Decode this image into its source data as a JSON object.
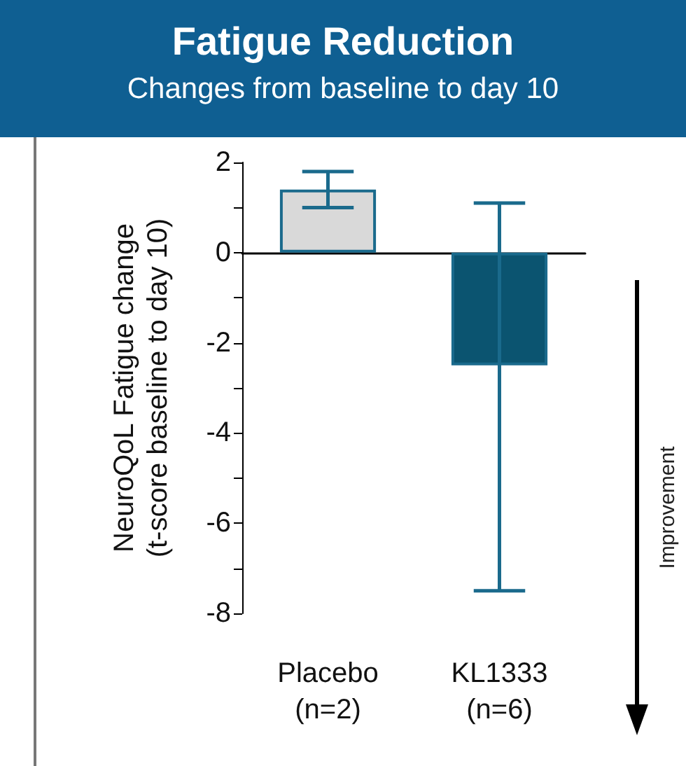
{
  "chart_data": {
    "type": "bar",
    "title": "Fatigue Reduction",
    "subtitle": "Changes from baseline to day 10",
    "ylabel": "NeuroQoL Fatigue change\n(t-score baseline to day 10)",
    "categories": [
      "Placebo\n(n=2)",
      "KL1333\n(n=6)"
    ],
    "values": [
      1.4,
      -2.5
    ],
    "colors": [
      "#d9d9d9",
      "#0b5470"
    ],
    "errors": [
      [
        1.0,
        1.8
      ],
      [
        -7.5,
        1.1
      ]
    ],
    "ylim": [
      -8,
      2
    ],
    "yticks": [
      -8,
      {
        "value": -7,
        "label": null
      },
      -6,
      {
        "value": -5,
        "label": null
      },
      -4,
      {
        "value": -3,
        "label": null
      },
      -2,
      {
        "value": -1,
        "label": null
      },
      0,
      {
        "value": 1,
        "label": null
      },
      2
    ],
    "annotations": [
      "Improvement"
    ],
    "grid": false
  }
}
